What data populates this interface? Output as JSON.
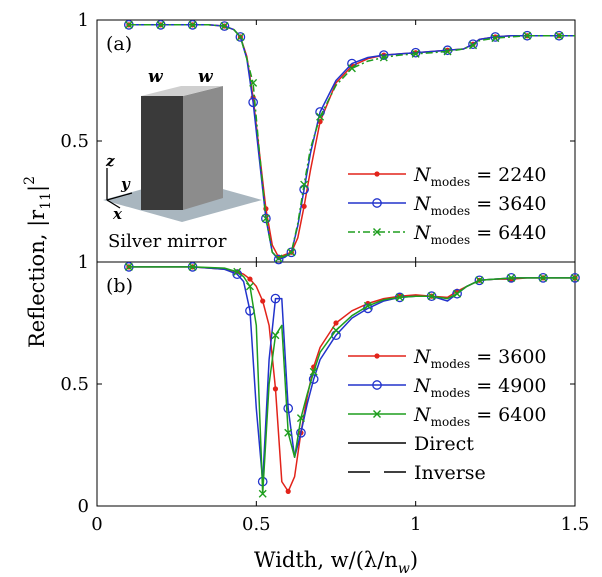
{
  "figure": {
    "ylabel_text": "Reflection, |r",
    "ylabel_sub": "11",
    "ylabel_sup": "2",
    "ylabel_tail": "|",
    "xlabel_text": "Width, w/(λ/n",
    "xlabel_sub": "w",
    "xlabel_tail": ")"
  },
  "inset": {
    "label_w_left": "w",
    "label_w_right": "w",
    "axis_z": "z",
    "axis_y": "y",
    "axis_x": "x",
    "caption": "Silver mirror",
    "colors": {
      "top": "#cfcfcf",
      "front": "#3a3a3a",
      "side": "#8c8c8c",
      "mirror": "#a9b6bf"
    }
  },
  "chart_data": [
    {
      "panel": "(a)",
      "type": "line",
      "xlim": [
        0,
        1.5
      ],
      "ylim": [
        0,
        1
      ],
      "yticks": [
        0.5,
        1
      ],
      "ytick_labels": [
        "0.5",
        "1"
      ],
      "xticks": [
        0,
        0.5,
        1,
        1.5
      ],
      "grid": false,
      "legend_position": "lower-right",
      "x": [
        0.1,
        0.15,
        0.2,
        0.25,
        0.3,
        0.35,
        0.4,
        0.43,
        0.45,
        0.47,
        0.49,
        0.51,
        0.53,
        0.55,
        0.57,
        0.59,
        0.61,
        0.63,
        0.65,
        0.67,
        0.7,
        0.75,
        0.8,
        0.85,
        0.9,
        0.95,
        1.0,
        1.05,
        1.1,
        1.15,
        1.18,
        1.2,
        1.25,
        1.3,
        1.35,
        1.4,
        1.45,
        1.5
      ],
      "series": [
        {
          "name_main": "N",
          "name_sub": "modes",
          "name_value": "= 2240",
          "color": "#e2231a",
          "marker": "dot",
          "dash": "solid",
          "values": [
            0.98,
            0.98,
            0.98,
            0.98,
            0.98,
            0.98,
            0.975,
            0.96,
            0.93,
            0.85,
            0.68,
            0.45,
            0.22,
            0.07,
            0.02,
            0.03,
            0.04,
            0.1,
            0.23,
            0.38,
            0.58,
            0.74,
            0.81,
            0.84,
            0.855,
            0.86,
            0.865,
            0.87,
            0.875,
            0.88,
            0.9,
            0.92,
            0.93,
            0.935,
            0.935,
            0.935,
            0.935,
            0.935
          ]
        },
        {
          "name_main": "N",
          "name_sub": "modes",
          "name_value": "= 3640",
          "color": "#2233cc",
          "marker": "circle",
          "dash": "solid",
          "values": [
            0.98,
            0.98,
            0.98,
            0.98,
            0.98,
            0.98,
            0.975,
            0.96,
            0.93,
            0.84,
            0.66,
            0.42,
            0.18,
            0.04,
            0.01,
            0.02,
            0.04,
            0.15,
            0.3,
            0.45,
            0.62,
            0.75,
            0.82,
            0.845,
            0.855,
            0.86,
            0.865,
            0.87,
            0.875,
            0.88,
            0.9,
            0.92,
            0.93,
            0.935,
            0.935,
            0.935,
            0.935,
            0.935
          ]
        },
        {
          "name_main": "N",
          "name_sub": "modes",
          "name_value": "= 6440",
          "color": "#1e9e1e",
          "marker": "x",
          "dash": "dashdot",
          "values": [
            0.98,
            0.98,
            0.98,
            0.98,
            0.98,
            0.98,
            0.975,
            0.96,
            0.93,
            0.84,
            0.74,
            0.45,
            0.18,
            0.04,
            0.015,
            0.025,
            0.04,
            0.16,
            0.32,
            0.47,
            0.6,
            0.73,
            0.8,
            0.83,
            0.845,
            0.855,
            0.86,
            0.865,
            0.87,
            0.88,
            0.895,
            0.915,
            0.925,
            0.93,
            0.935,
            0.935,
            0.935,
            0.935
          ]
        }
      ]
    },
    {
      "panel": "(b)",
      "type": "line",
      "xlim": [
        0,
        1.5
      ],
      "ylim": [
        0,
        1
      ],
      "yticks": [
        0,
        0.5,
        1
      ],
      "ytick_labels": [
        "0",
        "0.5",
        "1"
      ],
      "xticks": [
        0,
        0.5,
        1,
        1.5
      ],
      "xtick_labels": [
        "0",
        "0.5",
        "1",
        "1.5"
      ],
      "grid": false,
      "legend_position": "lower-right",
      "x": [
        0.1,
        0.2,
        0.3,
        0.4,
        0.44,
        0.46,
        0.48,
        0.5,
        0.52,
        0.54,
        0.56,
        0.58,
        0.6,
        0.62,
        0.64,
        0.66,
        0.68,
        0.7,
        0.75,
        0.8,
        0.85,
        0.9,
        0.95,
        1.0,
        1.05,
        1.1,
        1.13,
        1.16,
        1.2,
        1.25,
        1.3,
        1.35,
        1.4,
        1.45,
        1.5
      ],
      "series": [
        {
          "name_main": "N",
          "name_sub": "modes",
          "name_value": "= 3600",
          "color": "#e2231a",
          "marker": "dot",
          "dash": "solid",
          "values": [
            0.98,
            0.98,
            0.98,
            0.97,
            0.96,
            0.95,
            0.93,
            0.9,
            0.84,
            0.74,
            0.48,
            0.1,
            0.06,
            0.12,
            0.3,
            0.45,
            0.57,
            0.65,
            0.75,
            0.8,
            0.83,
            0.85,
            0.86,
            0.865,
            0.86,
            0.855,
            0.88,
            0.9,
            0.925,
            0.93,
            0.93,
            0.935,
            0.935,
            0.935,
            0.935
          ]
        },
        {
          "name_main": "N",
          "name_sub": "modes",
          "name_value": "= 4900",
          "color": "#2233cc",
          "marker": "circle",
          "dash": "solid",
          "values": [
            0.98,
            0.98,
            0.98,
            0.97,
            0.95,
            0.92,
            0.8,
            0.4,
            0.1,
            0.6,
            0.85,
            0.85,
            0.4,
            0.2,
            0.3,
            0.42,
            0.52,
            0.6,
            0.7,
            0.77,
            0.81,
            0.84,
            0.855,
            0.86,
            0.86,
            0.84,
            0.87,
            0.9,
            0.925,
            0.93,
            0.935,
            0.935,
            0.935,
            0.935,
            0.935
          ]
        },
        {
          "name_main": "N",
          "name_sub": "modes",
          "name_value": "= 6400",
          "color": "#1e9e1e",
          "marker": "x",
          "dash": "solid",
          "values": [
            0.98,
            0.98,
            0.98,
            0.975,
            0.96,
            0.94,
            0.9,
            0.74,
            0.05,
            0.5,
            0.7,
            0.74,
            0.3,
            0.2,
            0.36,
            0.46,
            0.55,
            0.63,
            0.72,
            0.78,
            0.82,
            0.845,
            0.855,
            0.86,
            0.86,
            0.85,
            0.87,
            0.9,
            0.925,
            0.93,
            0.935,
            0.935,
            0.935,
            0.935,
            0.935
          ]
        }
      ],
      "style_legend": [
        {
          "label": "Direct",
          "dash": "solid"
        },
        {
          "label": "Inverse",
          "dash": "dashed"
        }
      ]
    }
  ]
}
